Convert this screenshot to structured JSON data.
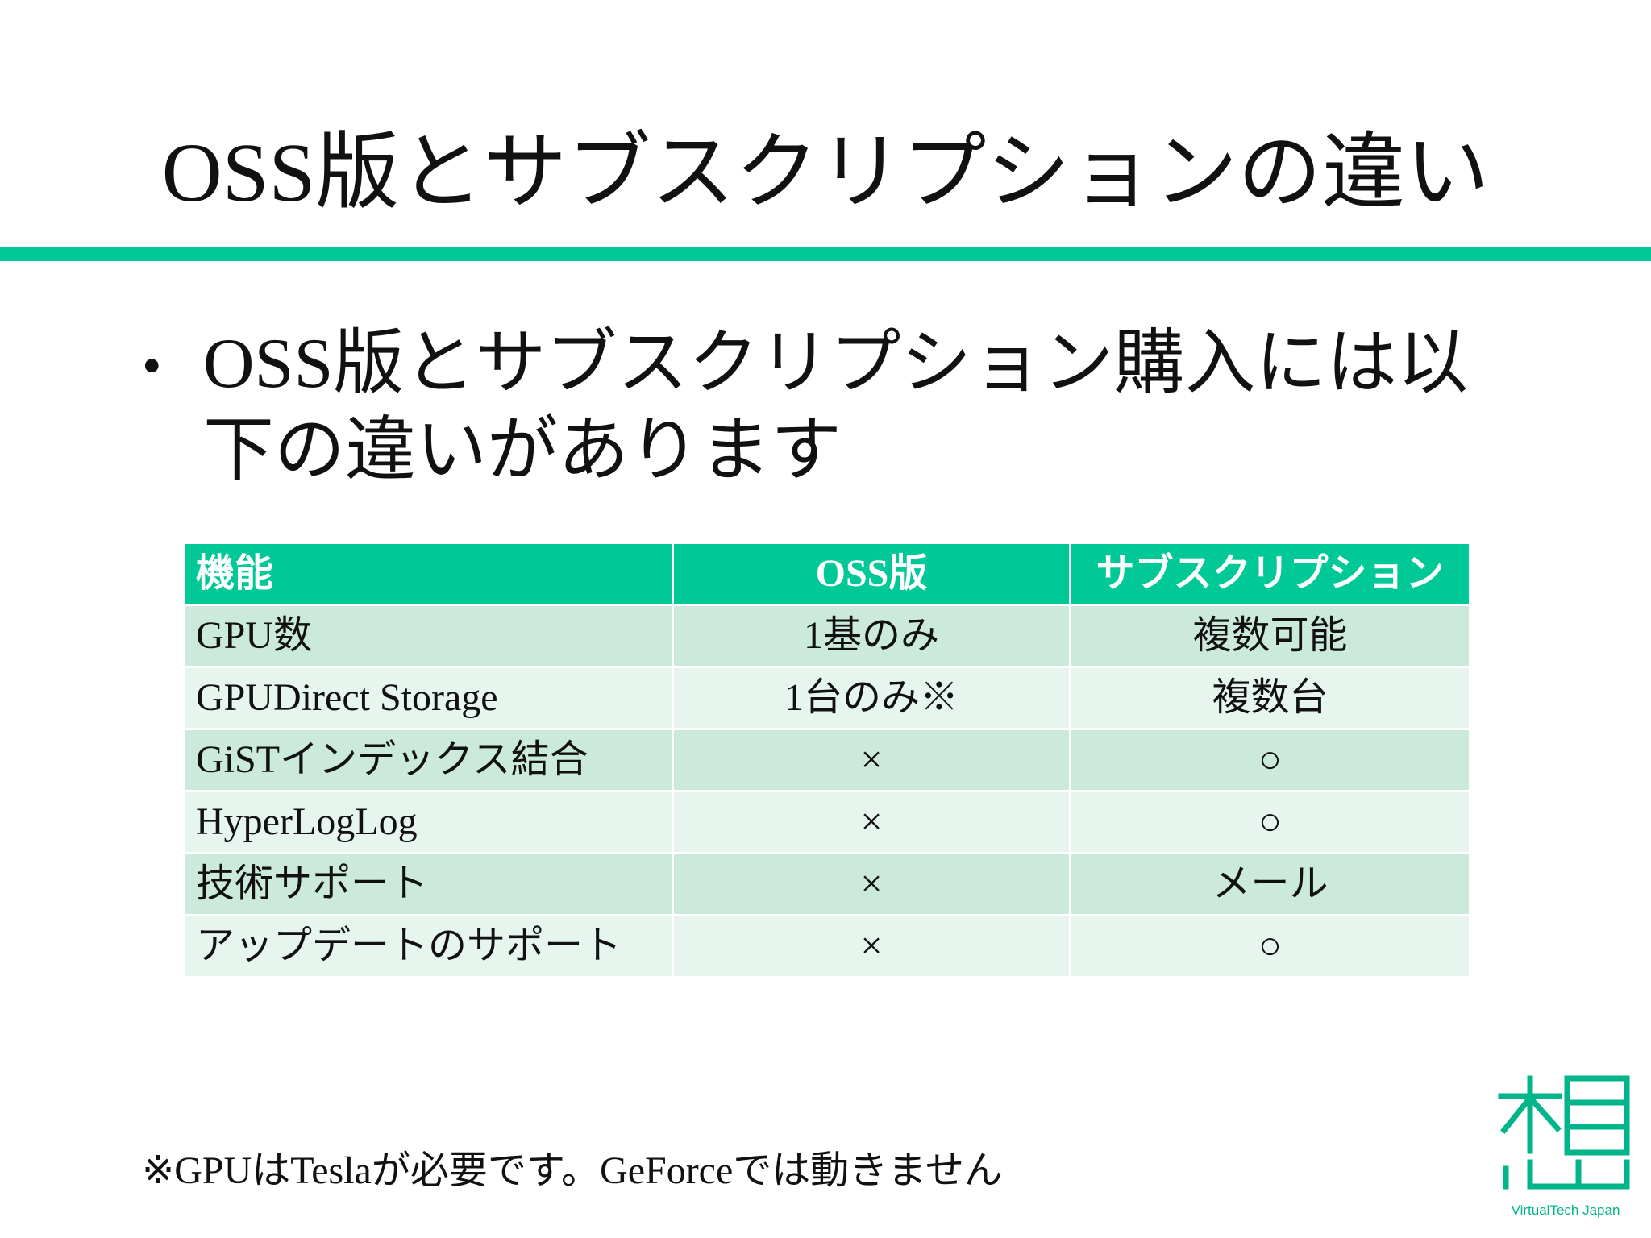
{
  "slide": {
    "title": "OSS版とサブスクリプションの違い",
    "bullet": "OSS版とサブスクリプション購入には以下の違いがあります",
    "footnote": "※GPUはTeslaが必要です。GeForceでは動きません"
  },
  "table": {
    "headers": [
      "機能",
      "OSS版",
      "サブスクリプション"
    ],
    "rows": [
      [
        "GPU数",
        "1基のみ",
        "複数可能"
      ],
      [
        "GPUDirect Storage",
        "1台のみ※",
        "複数台"
      ],
      [
        "GiSTインデックス結合",
        "×",
        "○"
      ],
      [
        "HyperLogLog",
        "×",
        "○"
      ],
      [
        "技術サポート",
        "×",
        "メール"
      ],
      [
        "アップデートのサポート",
        "×",
        "○"
      ]
    ]
  },
  "logo": {
    "icon": "vtj-logo-icon",
    "text": "VirtualTech Japan",
    "color": "#00b58a"
  },
  "colors": {
    "accent": "#00c897",
    "row_dark": "#cbeadc",
    "row_light": "#e6f5ee"
  }
}
